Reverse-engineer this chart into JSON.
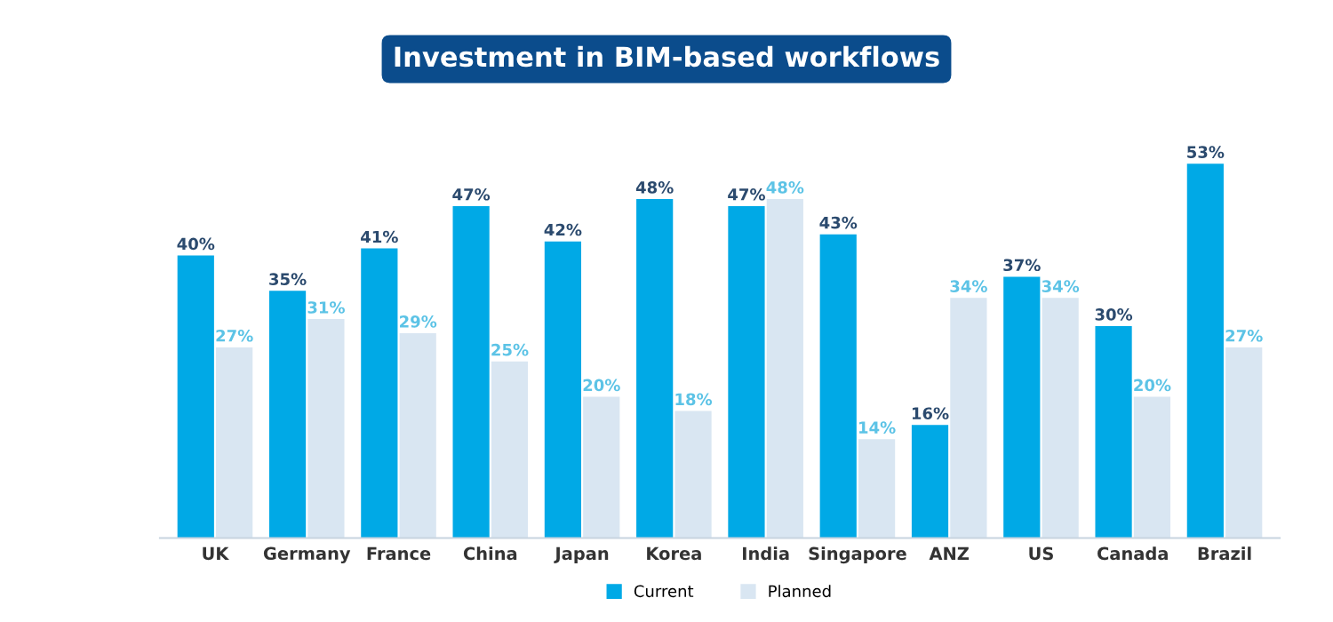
{
  "chart_data": {
    "type": "bar",
    "title": "Investment in BIM-based workflows",
    "categories": [
      "UK",
      "Germany",
      "France",
      "China",
      "Japan",
      "Korea",
      "India",
      "Singapore",
      "ANZ",
      "US",
      "Canada",
      "Brazil"
    ],
    "series": [
      {
        "name": "Current",
        "color": "#00a9e6",
        "values": [
          40,
          35,
          41,
          47,
          42,
          48,
          47,
          43,
          16,
          37,
          30,
          53
        ],
        "value_labels": [
          "40%",
          "35%",
          "41%",
          "47%",
          "42%",
          "48%",
          "47%",
          "43%",
          "16%",
          "37%",
          "30%",
          "53%"
        ]
      },
      {
        "name": "Planned",
        "color": "#d9e6f2",
        "values": [
          27,
          31,
          29,
          25,
          20,
          18,
          48,
          14,
          34,
          34,
          20,
          27
        ],
        "value_labels": [
          "27%",
          "31%",
          "29%",
          "25%",
          "20%",
          "18%",
          "48%",
          "14%",
          "34%",
          "34%",
          "20%",
          "27%"
        ]
      }
    ],
    "legend": "bottom",
    "grid": false
  }
}
